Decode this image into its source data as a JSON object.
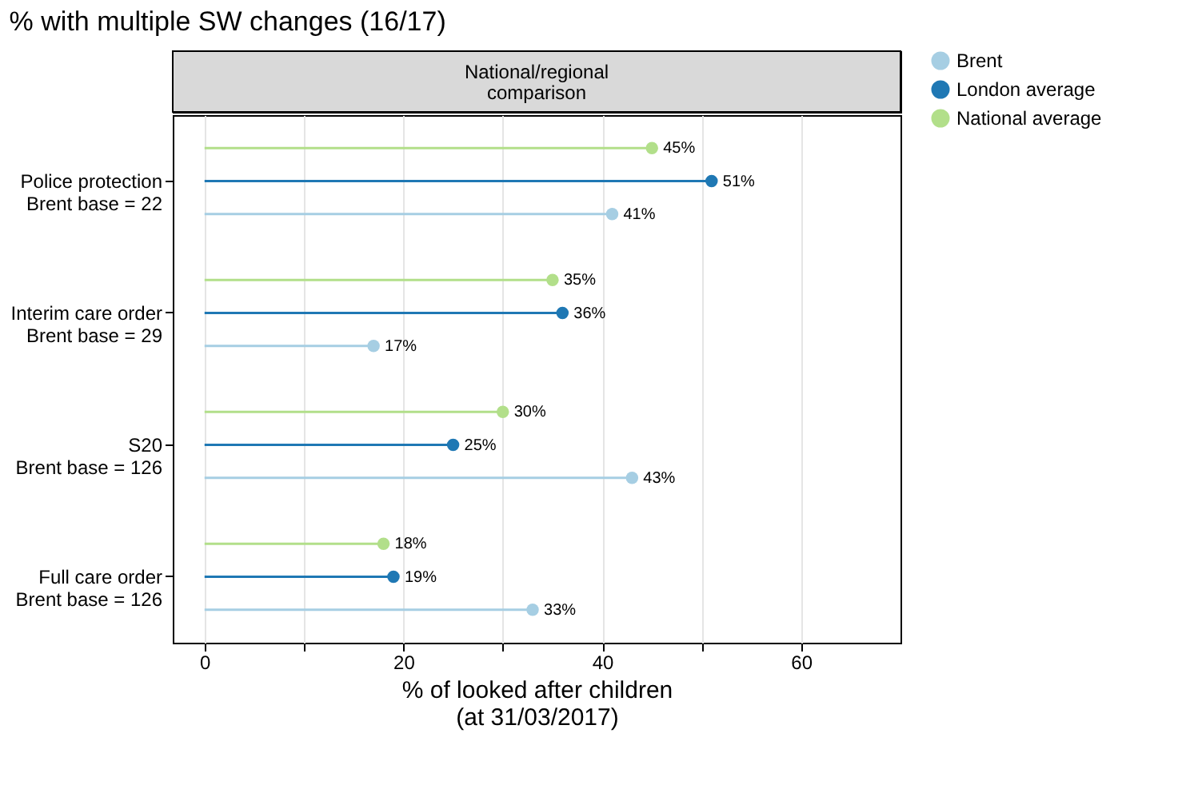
{
  "chart_data": {
    "type": "lollipop",
    "orientation": "horizontal",
    "title": "% with multiple SW changes (16/17)",
    "subtitle": "National/regional\ncomparison",
    "xlabel": "% of looked after children\n(at 31/03/2017)",
    "categories": [
      "Police protection\nBrent base = 22",
      "Interim care order\nBrent base = 29",
      "S20\nBrent base = 126",
      "Full care order\nBrent base = 126"
    ],
    "series": [
      {
        "name": "Brent",
        "color": "#a6cee3",
        "values": [
          41,
          17,
          43,
          33
        ],
        "value_labels": [
          "41%",
          "17%",
          "43%",
          "33%"
        ]
      },
      {
        "name": "London average",
        "color": "#1f78b4",
        "values": [
          51,
          36,
          25,
          19
        ],
        "value_labels": [
          "51%",
          "36%",
          "25%",
          "19%"
        ]
      },
      {
        "name": "National average",
        "color": "#b2df8a",
        "values": [
          45,
          35,
          30,
          18
        ],
        "value_labels": [
          "45%",
          "35%",
          "30%",
          "18%"
        ]
      }
    ],
    "xlim": [
      -3.2,
      70
    ],
    "xticks": [
      0,
      {
        "value": 10,
        "label": null
      },
      20,
      {
        "value": 30,
        "label": null
      },
      40,
      {
        "value": 50,
        "label": null
      },
      60
    ],
    "grid": "x",
    "legend": "right",
    "marker": "circle"
  }
}
